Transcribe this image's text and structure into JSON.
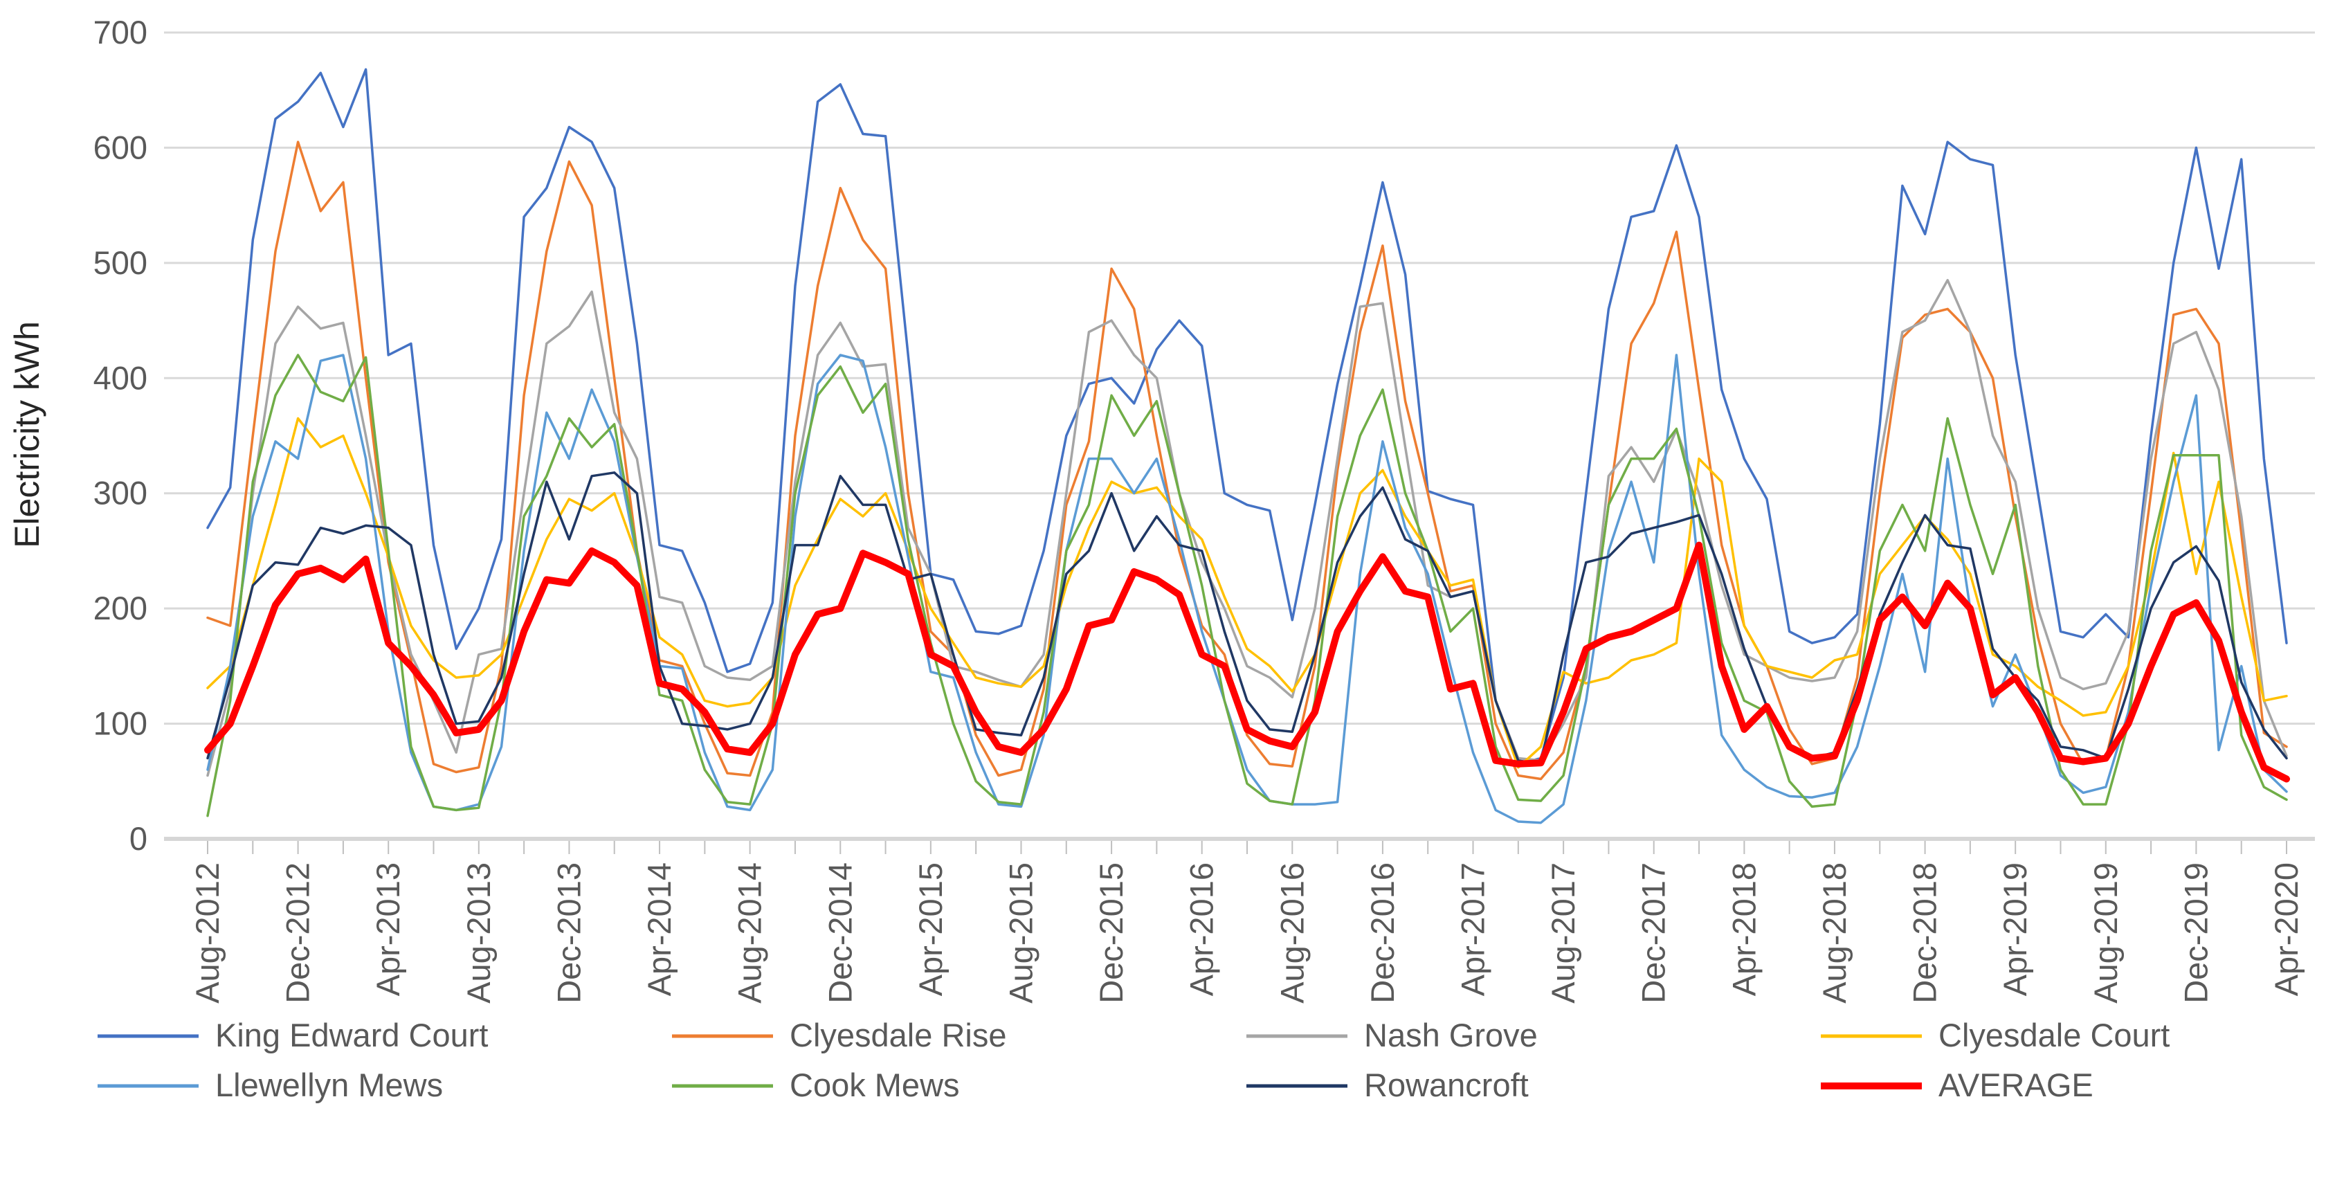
{
  "chart_data": {
    "type": "line",
    "title": "",
    "xlabel": "",
    "ylabel": "Electricity kWh",
    "ylim": [
      0,
      700
    ],
    "ytick_step": 100,
    "grid": "horizontal-only",
    "gridline_color": "#d9d9d9",
    "axis_text_color": "#595959",
    "legend_position": "bottom",
    "x_label_interval_months": 4,
    "x_tickmark_interval_months": 2,
    "x_label_rotation_degrees": 90,
    "categories": [
      "Aug-2012",
      "Sep-2012",
      "Oct-2012",
      "Nov-2012",
      "Dec-2012",
      "Jan-2013",
      "Feb-2013",
      "Mar-2013",
      "Apr-2013",
      "May-2013",
      "Jun-2013",
      "Jul-2013",
      "Aug-2013",
      "Sep-2013",
      "Oct-2013",
      "Nov-2013",
      "Dec-2013",
      "Jan-2014",
      "Feb-2014",
      "Mar-2014",
      "Apr-2014",
      "May-2014",
      "Jun-2014",
      "Jul-2014",
      "Aug-2014",
      "Sep-2014",
      "Oct-2014",
      "Nov-2014",
      "Dec-2014",
      "Jan-2015",
      "Feb-2015",
      "Mar-2015",
      "Apr-2015",
      "May-2015",
      "Jun-2015",
      "Jul-2015",
      "Aug-2015",
      "Sep-2015",
      "Oct-2015",
      "Nov-2015",
      "Dec-2015",
      "Jan-2016",
      "Feb-2016",
      "Mar-2016",
      "Apr-2016",
      "May-2016",
      "Jun-2016",
      "Jul-2016",
      "Aug-2016",
      "Sep-2016",
      "Oct-2016",
      "Nov-2016",
      "Dec-2016",
      "Jan-2017",
      "Feb-2017",
      "Mar-2017",
      "Apr-2017",
      "May-2017",
      "Jun-2017",
      "Jul-2017",
      "Aug-2017",
      "Sep-2017",
      "Oct-2017",
      "Nov-2017",
      "Dec-2017",
      "Jan-2018",
      "Feb-2018",
      "Mar-2018",
      "Apr-2018",
      "May-2018",
      "Jun-2018",
      "Jul-2018",
      "Aug-2018",
      "Sep-2018",
      "Oct-2018",
      "Nov-2018",
      "Dec-2018",
      "Jan-2019",
      "Feb-2019",
      "Mar-2019",
      "Apr-2019",
      "May-2019",
      "Jun-2019",
      "Jul-2019",
      "Aug-2019",
      "Sep-2019",
      "Oct-2019",
      "Nov-2019",
      "Dec-2019",
      "Jan-2020",
      "Feb-2020",
      "Mar-2020",
      "Apr-2020"
    ],
    "series": [
      {
        "name": "King Edward Court",
        "color": "#4472C4",
        "width": 3.5,
        "values": [
          270,
          305,
          520,
          625,
          640,
          665,
          618,
          668,
          420,
          430,
          255,
          165,
          200,
          260,
          540,
          565,
          618,
          605,
          565,
          430,
          255,
          250,
          205,
          145,
          152,
          205,
          480,
          640,
          655,
          612,
          610,
          420,
          230,
          225,
          180,
          178,
          185,
          250,
          350,
          395,
          400,
          378,
          425,
          450,
          428,
          300,
          290,
          285,
          190,
          290,
          395,
          480,
          570,
          490,
          302,
          295,
          290,
          120,
          65,
          70,
          140,
          300,
          460,
          540,
          545,
          602,
          540,
          390,
          330,
          295,
          180,
          170,
          175,
          195,
          360,
          567,
          525,
          605,
          590,
          585,
          420,
          300,
          180,
          175,
          195,
          175,
          350,
          500,
          600,
          495,
          590,
          330,
          170
        ]
      },
      {
        "name": "Clyesdale Rise",
        "color": "#ED7D31",
        "width": 3.5,
        "values": [
          192,
          185,
          350,
          510,
          605,
          545,
          570,
          400,
          240,
          155,
          65,
          58,
          62,
          150,
          385,
          510,
          588,
          550,
          400,
          250,
          155,
          150,
          100,
          57,
          55,
          110,
          350,
          480,
          565,
          520,
          495,
          300,
          180,
          160,
          90,
          55,
          60,
          130,
          290,
          345,
          495,
          460,
          350,
          250,
          185,
          160,
          90,
          65,
          63,
          150,
          320,
          440,
          515,
          380,
          300,
          215,
          220,
          100,
          55,
          52,
          75,
          150,
          290,
          430,
          465,
          527,
          390,
          255,
          185,
          150,
          95,
          65,
          70,
          140,
          300,
          435,
          455,
          460,
          440,
          400,
          280,
          175,
          100,
          65,
          70,
          150,
          300,
          455,
          460,
          430,
          265,
          92,
          80
        ]
      },
      {
        "name": "Nash Grove",
        "color": "#A5A5A5",
        "width": 3.5,
        "values": [
          55,
          130,
          300,
          430,
          462,
          443,
          448,
          350,
          245,
          160,
          120,
          75,
          160,
          165,
          300,
          430,
          445,
          475,
          370,
          330,
          210,
          205,
          150,
          140,
          138,
          150,
          310,
          420,
          448,
          410,
          412,
          270,
          230,
          150,
          145,
          138,
          132,
          160,
          300,
          440,
          450,
          420,
          400,
          300,
          240,
          200,
          150,
          140,
          123,
          200,
          330,
          462,
          465,
          340,
          220,
          210,
          215,
          120,
          70,
          68,
          100,
          140,
          315,
          340,
          310,
          355,
          300,
          220,
          160,
          150,
          140,
          137,
          140,
          180,
          330,
          440,
          450,
          485,
          440,
          350,
          310,
          200,
          140,
          130,
          135,
          180,
          330,
          430,
          440,
          390,
          280,
          120,
          72
        ]
      },
      {
        "name": "Clyesdale Court",
        "color": "#FFC000",
        "width": 3.5,
        "values": [
          131,
          150,
          220,
          290,
          365,
          340,
          350,
          300,
          245,
          185,
          155,
          140,
          142,
          160,
          210,
          260,
          295,
          285,
          300,
          245,
          175,
          160,
          120,
          115,
          118,
          140,
          220,
          260,
          295,
          280,
          300,
          250,
          200,
          170,
          140,
          135,
          132,
          150,
          220,
          270,
          310,
          300,
          305,
          280,
          260,
          210,
          165,
          150,
          128,
          160,
          230,
          300,
          320,
          280,
          250,
          220,
          225,
          120,
          62,
          80,
          145,
          135,
          140,
          155,
          160,
          170,
          330,
          310,
          185,
          150,
          145,
          140,
          155,
          160,
          230,
          255,
          280,
          260,
          230,
          160,
          150,
          132,
          120,
          107,
          110,
          150,
          230,
          335,
          230,
          310,
          210,
          120,
          124
        ]
      },
      {
        "name": "Llewellyn Mews",
        "color": "#5B9BD5",
        "width": 3.5,
        "values": [
          60,
          150,
          280,
          345,
          330,
          415,
          420,
          330,
          180,
          75,
          28,
          25,
          30,
          80,
          250,
          370,
          330,
          390,
          345,
          245,
          150,
          148,
          75,
          28,
          25,
          60,
          280,
          395,
          420,
          415,
          340,
          245,
          145,
          140,
          75,
          30,
          28,
          90,
          250,
          330,
          330,
          300,
          330,
          260,
          180,
          120,
          60,
          33,
          30,
          30,
          32,
          230,
          345,
          270,
          230,
          150,
          75,
          25,
          15,
          14,
          30,
          120,
          250,
          310,
          240,
          420,
          230,
          90,
          60,
          45,
          37,
          36,
          40,
          80,
          150,
          230,
          145,
          330,
          200,
          115,
          160,
          110,
          55,
          40,
          45,
          110,
          220,
          310,
          385,
          77,
          150,
          60,
          41
        ]
      },
      {
        "name": "Cook Mews",
        "color": "#70AD47",
        "width": 3.5,
        "values": [
          20,
          120,
          310,
          385,
          420,
          388,
          380,
          418,
          250,
          80,
          28,
          25,
          27,
          120,
          280,
          315,
          365,
          340,
          360,
          250,
          125,
          120,
          60,
          32,
          30,
          100,
          300,
          385,
          410,
          370,
          395,
          260,
          170,
          100,
          50,
          32,
          30,
          110,
          250,
          290,
          385,
          350,
          380,
          300,
          220,
          120,
          48,
          33,
          30,
          120,
          280,
          350,
          390,
          300,
          250,
          180,
          200,
          80,
          34,
          33,
          55,
          150,
          290,
          330,
          330,
          356,
          280,
          170,
          120,
          110,
          50,
          28,
          30,
          120,
          250,
          290,
          250,
          365,
          290,
          230,
          290,
          150,
          60,
          30,
          30,
          100,
          250,
          333,
          333,
          333,
          90,
          45,
          34
        ]
      },
      {
        "name": "Rowancroft",
        "color": "#203864",
        "width": 3.5,
        "values": [
          70,
          140,
          220,
          240,
          238,
          270,
          265,
          272,
          270,
          255,
          160,
          100,
          102,
          140,
          230,
          310,
          260,
          315,
          318,
          300,
          150,
          100,
          98,
          95,
          100,
          140,
          255,
          255,
          315,
          290,
          290,
          225,
          230,
          160,
          95,
          92,
          90,
          140,
          230,
          250,
          300,
          250,
          280,
          255,
          250,
          180,
          120,
          95,
          93,
          160,
          240,
          280,
          305,
          260,
          250,
          210,
          215,
          120,
          68,
          65,
          160,
          240,
          245,
          265,
          270,
          275,
          281,
          230,
          165,
          115,
          80,
          70,
          75,
          130,
          195,
          240,
          281,
          255,
          252,
          165,
          140,
          120,
          80,
          77,
          70,
          130,
          200,
          240,
          254,
          224,
          136,
          95,
          70
        ]
      },
      {
        "name": "AVERAGE",
        "color": "#FF0000",
        "width": 10,
        "values": [
          77,
          100,
          150,
          203,
          230,
          235,
          225,
          243,
          170,
          150,
          125,
          92,
          95,
          120,
          180,
          225,
          222,
          250,
          240,
          220,
          135,
          130,
          110,
          78,
          75,
          100,
          160,
          195,
          200,
          248,
          240,
          230,
          160,
          150,
          110,
          80,
          75,
          95,
          130,
          185,
          190,
          232,
          225,
          212,
          160,
          150,
          95,
          85,
          80,
          110,
          180,
          215,
          245,
          215,
          210,
          130,
          135,
          68,
          65,
          66,
          110,
          165,
          175,
          180,
          190,
          200,
          255,
          150,
          95,
          115,
          80,
          70,
          72,
          120,
          190,
          210,
          185,
          222,
          200,
          125,
          140,
          110,
          70,
          67,
          70,
          100,
          150,
          195,
          205,
          172,
          110,
          62,
          52
        ]
      }
    ]
  }
}
